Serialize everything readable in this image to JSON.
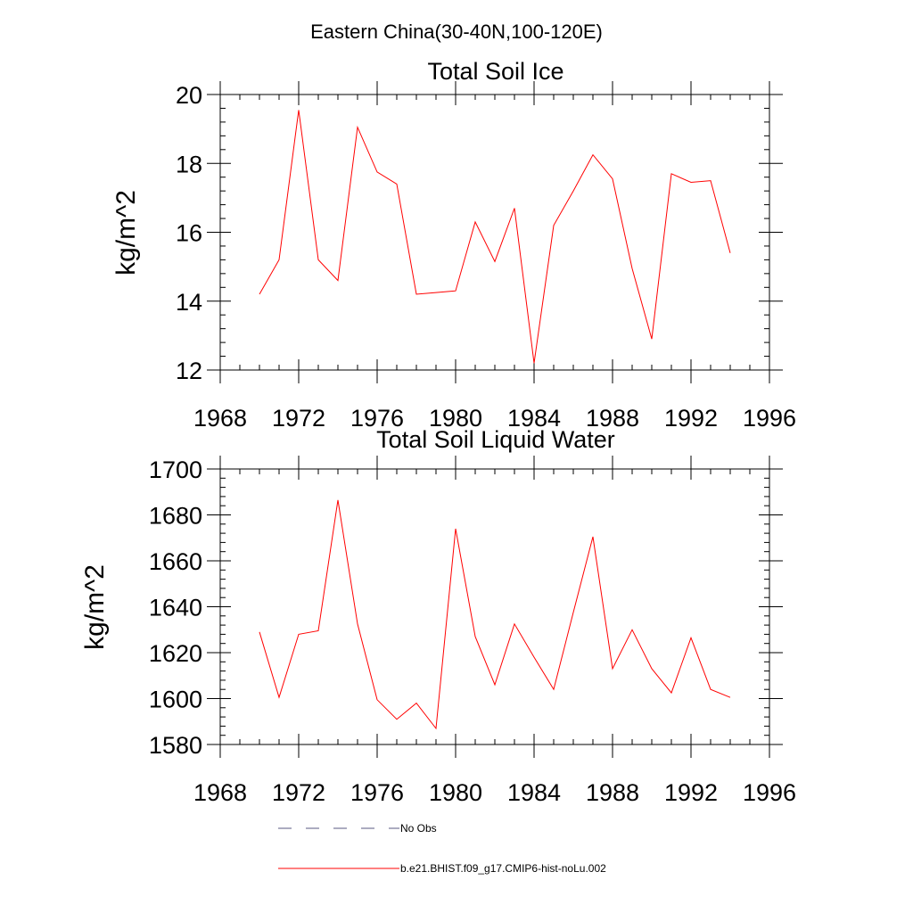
{
  "main_title": "Eastern China(30-40N,100-120E)",
  "legend": {
    "items": [
      {
        "label": "No Obs",
        "style": "dashed",
        "color": "#5a5a80"
      },
      {
        "label": "b.e21.BHIST.f09_g17.CMIP6-hist-noLu.002",
        "style": "solid",
        "color": "#ff0000"
      }
    ]
  },
  "chart_data": [
    {
      "type": "line",
      "title": "Total Soil Ice",
      "ylabel": "kg/m^2",
      "xlabel": "",
      "xlim": [
        1968,
        1996
      ],
      "ylim": [
        12,
        20
      ],
      "xticks": [
        1968,
        1972,
        1976,
        1980,
        1984,
        1988,
        1992,
        1996
      ],
      "yticks": [
        12,
        14,
        16,
        18,
        20
      ],
      "y_minor_step": 0.4,
      "series": [
        {
          "name": "b.e21.BHIST.f09_g17.CMIP6-hist-noLu.002",
          "color": "#ff0000",
          "x": [
            1970,
            1971,
            1972,
            1973,
            1974,
            1975,
            1976,
            1977,
            1978,
            1979,
            1980,
            1981,
            1982,
            1983,
            1984,
            1985,
            1986,
            1987,
            1988,
            1989,
            1990,
            1991,
            1992,
            1993,
            1994
          ],
          "values": [
            14.2,
            15.2,
            19.55,
            15.2,
            14.6,
            19.05,
            17.75,
            17.4,
            14.2,
            14.25,
            14.3,
            16.3,
            15.15,
            16.7,
            12.2,
            16.2,
            17.2,
            18.25,
            17.55,
            14.95,
            12.9,
            17.7,
            17.45,
            17.5,
            15.4
          ]
        }
      ]
    },
    {
      "type": "line",
      "title": "Total Soil Liquid Water",
      "ylabel": "kg/m^2",
      "xlabel": "",
      "xlim": [
        1968,
        1996
      ],
      "ylim": [
        1580,
        1700
      ],
      "xticks": [
        1968,
        1972,
        1976,
        1980,
        1984,
        1988,
        1992,
        1996
      ],
      "yticks": [
        1580,
        1600,
        1620,
        1640,
        1660,
        1680,
        1700
      ],
      "y_minor_step": 4,
      "series": [
        {
          "name": "b.e21.BHIST.f09_g17.CMIP6-hist-noLu.002",
          "color": "#ff0000",
          "x": [
            1970,
            1971,
            1972,
            1973,
            1974,
            1975,
            1976,
            1977,
            1978,
            1979,
            1980,
            1981,
            1982,
            1983,
            1984,
            1985,
            1986,
            1987,
            1988,
            1989,
            1990,
            1991,
            1992,
            1993,
            1994
          ],
          "values": [
            1629,
            1600.5,
            1628,
            1629.5,
            1686.5,
            1632.5,
            1599.5,
            1591,
            1598,
            1587,
            1674,
            1627,
            1606,
            1632.5,
            1618,
            1604,
            1637.5,
            1670.5,
            1613,
            1630,
            1613,
            1602.5,
            1626.5,
            1604,
            1600.5
          ]
        }
      ]
    }
  ]
}
